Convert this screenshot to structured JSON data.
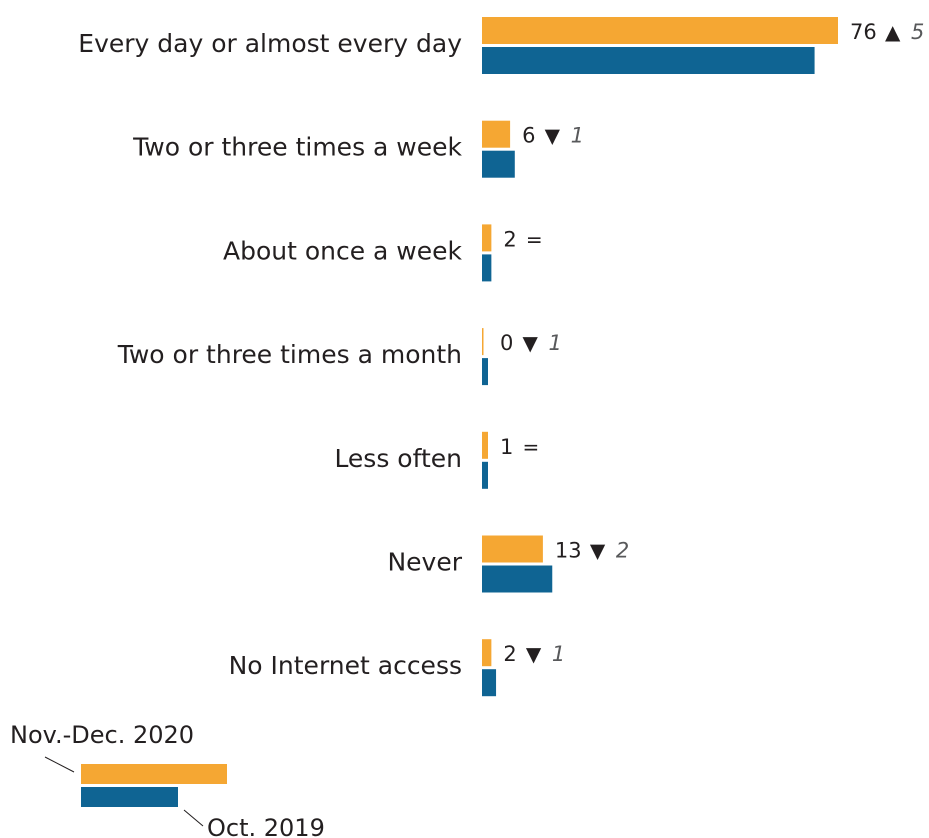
{
  "chart_data": {
    "type": "bar",
    "orientation": "horizontal",
    "categories": [
      "Every day or almost every day",
      "Two or three times a week",
      "About once a week",
      "Two or three times a month",
      "Less often",
      "Never",
      "No Internet access"
    ],
    "series": [
      {
        "name": "Nov.-Dec. 2020",
        "values": [
          76,
          6,
          2,
          0,
          1,
          13,
          2
        ]
      },
      {
        "name": "Oct. 2019",
        "values": [
          71,
          7,
          2,
          1,
          1,
          15,
          3
        ]
      }
    ],
    "value_labels": [
      "76",
      "6",
      "2",
      "0",
      "1",
      "13",
      "2"
    ],
    "changes": [
      {
        "direction": "up",
        "amount": "5"
      },
      {
        "direction": "down",
        "amount": "1"
      },
      {
        "direction": "same",
        "amount": ""
      },
      {
        "direction": "down",
        "amount": "1"
      },
      {
        "direction": "same",
        "amount": ""
      },
      {
        "direction": "down",
        "amount": "2"
      },
      {
        "direction": "down",
        "amount": "1"
      }
    ],
    "symbols": {
      "up": "▲",
      "down": "▼",
      "same": "="
    },
    "xlim": [
      0,
      76
    ],
    "grid": false,
    "legend": {
      "placement": "bottom-left"
    },
    "colors": {
      "series_2020": "#F5A733",
      "series_2019": "#0F6493",
      "text": "#231F20",
      "change_text": "#58595B"
    }
  }
}
